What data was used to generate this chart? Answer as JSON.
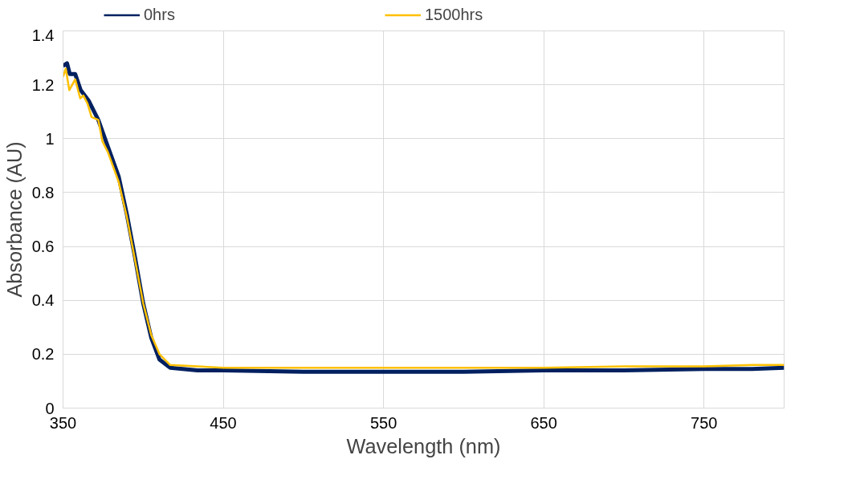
{
  "chart_data": {
    "type": "line",
    "xlabel": "Wavelength (nm)",
    "ylabel": "Absorbance (AU)",
    "xlim": [
      350,
      800
    ],
    "xticks": [
      350,
      450,
      550,
      650,
      750
    ],
    "ylim": [
      0,
      1.4
    ],
    "yticks": [
      0,
      0.2,
      0.4,
      0.6,
      0.8,
      1,
      1.2,
      1.4
    ],
    "grid": true,
    "legend": "top",
    "line_style": "solid",
    "marker": "none",
    "series": [
      {
        "name": "0hrs",
        "color": "#002060",
        "x": [
          350,
          352.5,
          354.2,
          357.6,
          361,
          366.1,
          372,
          378,
          384.7,
          389.8,
          394.9,
          400,
          405.1,
          410.2,
          416.9,
          433.9,
          450,
          500,
          550,
          600,
          650,
          700,
          750,
          780,
          800
        ],
        "values": [
          1.27,
          1.28,
          1.24,
          1.24,
          1.18,
          1.14,
          1.07,
          0.97,
          0.86,
          0.72,
          0.56,
          0.39,
          0.26,
          0.18,
          0.15,
          0.14,
          0.14,
          0.135,
          0.135,
          0.135,
          0.14,
          0.14,
          0.145,
          0.145,
          0.15
        ]
      },
      {
        "name": "1500hrs",
        "color": "#ffc000",
        "x": [
          350,
          351.7,
          353.9,
          357.6,
          360.7,
          362.7,
          365.3,
          367.8,
          372,
          374.6,
          378,
          384.7,
          389.8,
          394.9,
          400,
          405.1,
          410.2,
          416.9,
          433.9,
          450,
          500,
          550,
          600,
          650,
          700,
          750,
          780,
          800
        ],
        "values": [
          1.23,
          1.26,
          1.18,
          1.22,
          1.15,
          1.16,
          1.13,
          1.08,
          1.07,
          0.99,
          0.95,
          0.84,
          0.71,
          0.55,
          0.39,
          0.27,
          0.2,
          0.16,
          0.155,
          0.15,
          0.15,
          0.15,
          0.15,
          0.15,
          0.155,
          0.155,
          0.16,
          0.16
        ]
      }
    ]
  }
}
